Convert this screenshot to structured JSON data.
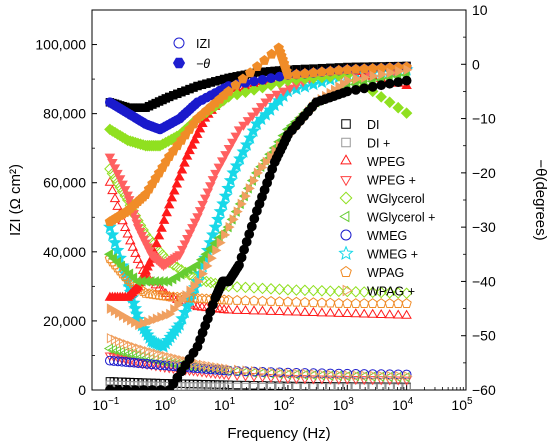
{
  "chart_data": {
    "type": "scatter",
    "xlabel": "Frequency (Hz)",
    "ylabel_left": "IZI (Ω cm²)",
    "ylabel_right": "−θ(degrees)",
    "xscale": "log",
    "xlim": [
      0.05,
      100000
    ],
    "ylim_left": [
      0,
      110000
    ],
    "ylim_right": [
      -60,
      10
    ],
    "x_ticks": [
      {
        "value": 0.1,
        "base": "10",
        "exp": "−1"
      },
      {
        "value": 1,
        "base": "10",
        "exp": "0"
      },
      {
        "value": 10,
        "base": "10",
        "exp": "1"
      },
      {
        "value": 100,
        "base": "10",
        "exp": "2"
      },
      {
        "value": 1000,
        "base": "10",
        "exp": "3"
      },
      {
        "value": 10000,
        "base": "10",
        "exp": "4"
      },
      {
        "value": 100000,
        "base": "10",
        "exp": "5"
      }
    ],
    "y_left_ticks": [
      {
        "value": 0,
        "label": "0"
      },
      {
        "value": 20000,
        "label": "20,000"
      },
      {
        "value": 40000,
        "label": "40,000"
      },
      {
        "value": 60000,
        "label": "60,000"
      },
      {
        "value": 80000,
        "label": "80,000"
      },
      {
        "value": 100000,
        "label": "100,000"
      }
    ],
    "y_right_ticks": [
      {
        "value": 10,
        "label": "10"
      },
      {
        "value": 0,
        "label": "0"
      },
      {
        "value": -10,
        "label": "−10"
      },
      {
        "value": -20,
        "label": "−20"
      },
      {
        "value": -30,
        "label": "−30"
      },
      {
        "value": -40,
        "label": "−40"
      },
      {
        "value": -50,
        "label": "−50"
      },
      {
        "value": -60,
        "label": "−60"
      }
    ],
    "legend_type": {
      "position": "top-left",
      "entries": [
        {
          "label": "IZI",
          "marker": "circle",
          "filled": false,
          "color": "#1f1fd0"
        },
        {
          "label": "−θ",
          "marker": "hexagon",
          "filled": true,
          "color": "#1f1fd0"
        }
      ]
    },
    "legend_position": "center-right",
    "series": [
      {
        "name": "DI",
        "marker": "square",
        "filled": false,
        "color": "#000000",
        "axis": "left",
        "points": [
          [
            0.1,
            2500
          ],
          [
            0.3,
            2200
          ],
          [
            1,
            1900
          ],
          [
            3,
            1700
          ],
          [
            10,
            1500
          ],
          [
            100,
            1200
          ],
          [
            1000,
            1000
          ],
          [
            10000,
            900
          ]
        ]
      },
      {
        "name": "DI +",
        "marker": "square",
        "filled": false,
        "color": "#999999",
        "axis": "left",
        "points": [
          [
            0.1,
            1500
          ],
          [
            0.3,
            1300
          ],
          [
            1,
            1100
          ],
          [
            3,
            1000
          ],
          [
            10,
            900
          ],
          [
            100,
            800
          ],
          [
            1000,
            750
          ],
          [
            10000,
            700
          ]
        ]
      },
      {
        "name": "WPEG",
        "marker": "triangle-up",
        "filled": false,
        "color": "#ff1a1a",
        "axis": "left",
        "points": [
          [
            0.1,
            60000
          ],
          [
            0.2,
            45000
          ],
          [
            0.4,
            33000
          ],
          [
            1,
            27000
          ],
          [
            3,
            24000
          ],
          [
            10,
            23000
          ],
          [
            100,
            22500
          ],
          [
            1000,
            22000
          ],
          [
            10000,
            21500
          ]
        ]
      },
      {
        "name": "WPEG +",
        "marker": "triangle-down",
        "filled": false,
        "color": "#ff4040",
        "axis": "left",
        "points": [
          [
            0.1,
            10000
          ],
          [
            0.3,
            8000
          ],
          [
            1,
            6500
          ],
          [
            3,
            5500
          ],
          [
            10,
            4500
          ],
          [
            100,
            3500
          ],
          [
            1000,
            3200
          ],
          [
            10000,
            3000
          ]
        ]
      },
      {
        "name": "WGlycerol",
        "marker": "diamond",
        "filled": false,
        "color": "#90e020",
        "axis": "left",
        "points": [
          [
            0.1,
            64000
          ],
          [
            0.2,
            55000
          ],
          [
            0.4,
            45000
          ],
          [
            1,
            37000
          ],
          [
            3,
            32000
          ],
          [
            10,
            30000
          ],
          [
            100,
            29000
          ],
          [
            1000,
            28500
          ],
          [
            10000,
            28000
          ]
        ]
      },
      {
        "name": "WGlycerol +",
        "marker": "triangle-left",
        "filled": false,
        "color": "#66cc33",
        "axis": "left",
        "points": [
          [
            0.1,
            12000
          ],
          [
            0.3,
            10000
          ],
          [
            1,
            8000
          ],
          [
            3,
            6500
          ],
          [
            10,
            5500
          ],
          [
            100,
            4500
          ],
          [
            1000,
            4000
          ],
          [
            10000,
            3700
          ]
        ]
      },
      {
        "name": "WMEG",
        "marker": "circle",
        "filled": false,
        "color": "#1a1acc",
        "axis": "left",
        "points": [
          [
            0.1,
            8500
          ],
          [
            0.3,
            7800
          ],
          [
            1,
            7000
          ],
          [
            3,
            6300
          ],
          [
            10,
            5600
          ],
          [
            100,
            5000
          ],
          [
            1000,
            4700
          ],
          [
            10000,
            4500
          ]
        ]
      },
      {
        "name": "WMEG +",
        "marker": "star",
        "filled": true,
        "color": "#18d8e8",
        "axis": "right",
        "points": [
          [
            0.1,
            -30
          ],
          [
            0.2,
            -40
          ],
          [
            0.3,
            -47
          ],
          [
            0.5,
            -51
          ],
          [
            0.8,
            -52
          ],
          [
            1.5,
            -48
          ],
          [
            3,
            -40
          ],
          [
            6,
            -30
          ],
          [
            12,
            -20
          ],
          [
            30,
            -11
          ],
          [
            100,
            -5
          ],
          [
            1000,
            -2
          ],
          [
            10000,
            -1
          ]
        ]
      },
      {
        "name": "WPAG",
        "marker": "pentagon",
        "filled": false,
        "color": "#f08c28",
        "axis": "left",
        "points": [
          [
            0.1,
            38000
          ],
          [
            0.2,
            32000
          ],
          [
            0.4,
            28000
          ],
          [
            1,
            27000
          ],
          [
            3,
            26500
          ],
          [
            10,
            26000
          ],
          [
            100,
            25500
          ],
          [
            1000,
            25000
          ],
          [
            10000,
            25000
          ]
        ]
      },
      {
        "name": "WPAG +",
        "marker": "triangle-right",
        "filled": false,
        "color": "#f0a060",
        "axis": "left",
        "points": [
          [
            0.1,
            15000
          ],
          [
            0.3,
            12000
          ],
          [
            1,
            9500
          ],
          [
            3,
            7500
          ],
          [
            10,
            6000
          ],
          [
            100,
            4800
          ],
          [
            1000,
            4200
          ],
          [
            10000,
            4000
          ]
        ]
      }
    ],
    "phase_series": [
      {
        "name": "DI",
        "marker": "square",
        "color": "#000000",
        "points": [
          [
            0.1,
            -7
          ],
          [
            0.2,
            -8
          ],
          [
            0.4,
            -8
          ],
          [
            1,
            -6
          ],
          [
            3,
            -4
          ],
          [
            10,
            -2.5
          ],
          [
            30,
            -1.5
          ],
          [
            100,
            -1
          ],
          [
            1000,
            -0.5
          ],
          [
            10000,
            -0.3
          ]
        ]
      },
      {
        "name": "WPEG",
        "marker": "triangle-up",
        "color": "#ff1a1a",
        "points": [
          [
            0.1,
            -43
          ],
          [
            0.2,
            -43
          ],
          [
            0.3,
            -41
          ],
          [
            0.5,
            -36
          ],
          [
            1,
            -26
          ],
          [
            2,
            -17
          ],
          [
            4,
            -10
          ],
          [
            10,
            -5
          ],
          [
            100,
            -2
          ],
          [
            1000,
            -1
          ],
          [
            10000,
            -4
          ]
        ]
      },
      {
        "name": "WPEG +",
        "marker": "triangle-down",
        "color": "#ff6060",
        "points": [
          [
            0.1,
            -17
          ],
          [
            0.2,
            -24
          ],
          [
            0.3,
            -30
          ],
          [
            0.5,
            -35
          ],
          [
            0.8,
            -37
          ],
          [
            1.5,
            -35
          ],
          [
            3,
            -28
          ],
          [
            6,
            -20
          ],
          [
            15,
            -12
          ],
          [
            50,
            -6
          ],
          [
            300,
            -2
          ],
          [
            10000,
            -1
          ]
        ]
      },
      {
        "name": "WGlycerol",
        "marker": "diamond",
        "color": "#90e020",
        "points": [
          [
            0.1,
            -12
          ],
          [
            0.2,
            -14
          ],
          [
            0.4,
            -15
          ],
          [
            0.7,
            -15
          ],
          [
            1.5,
            -13
          ],
          [
            3,
            -10
          ],
          [
            10,
            -6
          ],
          [
            100,
            -3
          ],
          [
            1000,
            -2
          ],
          [
            10000,
            -9
          ]
        ]
      },
      {
        "name": "WGlycerol +",
        "marker": "triangle-left",
        "color": "#66cc33",
        "points": [
          [
            0.1,
            -35
          ],
          [
            0.3,
            -40
          ],
          [
            1,
            -40
          ],
          [
            3,
            -37
          ],
          [
            10,
            -30
          ],
          [
            30,
            -20
          ],
          [
            100,
            -12
          ],
          [
            300,
            -7
          ],
          [
            1000,
            -4
          ],
          [
            10000,
            -2
          ]
        ]
      },
      {
        "name": "WMEG",
        "marker": "circle",
        "color": "#1a1acc",
        "points": [
          [
            0.1,
            -7
          ],
          [
            0.2,
            -9
          ],
          [
            0.4,
            -11
          ],
          [
            0.7,
            -12
          ],
          [
            1.5,
            -10
          ],
          [
            3,
            -7
          ],
          [
            10,
            -4
          ],
          [
            100,
            -2
          ],
          [
            1000,
            -1
          ],
          [
            10000,
            -0.5
          ]
        ]
      },
      {
        "name": "WPAG",
        "marker": "pentagon",
        "color": "#f08c28",
        "points": [
          [
            0.1,
            -29
          ],
          [
            0.2,
            -27
          ],
          [
            0.4,
            -24
          ],
          [
            1,
            -17
          ],
          [
            3,
            -10
          ],
          [
            10,
            -5
          ],
          [
            70,
            3
          ],
          [
            100,
            -2
          ],
          [
            1000,
            -1
          ],
          [
            10000,
            -0.5
          ]
        ]
      },
      {
        "name": "WPAG +",
        "marker": "triangle-right",
        "color": "#f0a060",
        "points": [
          [
            0.1,
            -45
          ],
          [
            0.3,
            -48
          ],
          [
            1,
            -46
          ],
          [
            3,
            -40
          ],
          [
            10,
            -30
          ],
          [
            30,
            -20
          ],
          [
            100,
            -13
          ],
          [
            300,
            -7
          ],
          [
            1000,
            -3
          ],
          [
            10000,
            -1
          ]
        ]
      },
      {
        "name": "DI +",
        "marker": "circle",
        "color": "#000000",
        "points": [
          [
            0.1,
            -60
          ],
          [
            1,
            -60
          ],
          [
            3,
            -52
          ],
          [
            6,
            -43
          ],
          [
            8,
            -40
          ],
          [
            10,
            -40
          ],
          [
            15,
            -37
          ],
          [
            30,
            -27
          ],
          [
            60,
            -18
          ],
          [
            100,
            -13
          ],
          [
            300,
            -7
          ],
          [
            1000,
            -5
          ],
          [
            10000,
            -3
          ]
        ]
      }
    ]
  }
}
